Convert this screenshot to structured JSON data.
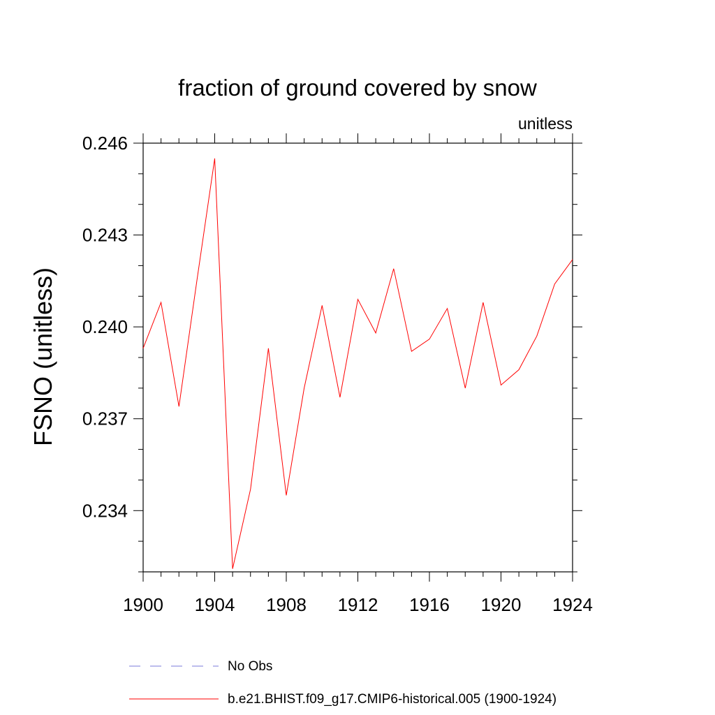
{
  "chart_data": {
    "type": "line",
    "title": "fraction of ground covered by snow",
    "units_label": "unitless",
    "xlabel": "",
    "ylabel": "FSNO  (unitless)",
    "xlim": [
      1900,
      1924
    ],
    "ylim": [
      0.232,
      0.246
    ],
    "x_ticks": [
      1900,
      1904,
      1908,
      1912,
      1916,
      1920,
      1924
    ],
    "x_tick_labels": [
      "1900",
      "1904",
      "1908",
      "1912",
      "1916",
      "1920",
      "1924"
    ],
    "y_ticks": [
      0.234,
      0.237,
      0.24,
      0.243,
      0.246
    ],
    "y_tick_labels": [
      "0.234",
      "0.237",
      "0.240",
      "0.243",
      "0.246"
    ],
    "grid": false,
    "legend_placement": "bottom",
    "series": [
      {
        "name": "b.e21.BHIST.f09_g17.CMIP6-historical.005 (1900-1924)",
        "color": "#ff0000",
        "style": "solid",
        "x": [
          1900,
          1901,
          1902,
          1903,
          1904,
          1905,
          1906,
          1907,
          1908,
          1909,
          1910,
          1911,
          1912,
          1913,
          1914,
          1915,
          1916,
          1917,
          1918,
          1919,
          1920,
          1921,
          1922,
          1923,
          1924
        ],
        "y": [
          0.2393,
          0.2408,
          0.2374,
          0.2415,
          0.2455,
          0.2321,
          0.2347,
          0.2393,
          0.2345,
          0.238,
          0.2407,
          0.2377,
          0.2409,
          0.2398,
          0.2419,
          0.2392,
          0.2396,
          0.2406,
          0.238,
          0.2408,
          0.2381,
          0.2386,
          0.2397,
          0.2414,
          0.2422
        ]
      },
      {
        "name": "No Obs",
        "color": "#7b7bdb",
        "style": "dashed",
        "x": [],
        "y": []
      }
    ]
  }
}
